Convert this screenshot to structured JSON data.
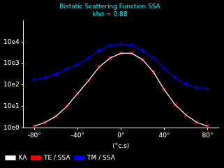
{
  "chart_data": {
    "type": "line",
    "title": "Bistatic Scattering Function SSA\nkhσ = 0.88",
    "x_label": "(°c.s)",
    "log": "y",
    "grid": false,
    "legend": "lower left",
    "xlim": [
      -90,
      90
    ],
    "xticks": [
      {
        "value": -80,
        "label": "-80°"
      },
      {
        "value": -40,
        "label": "-40°"
      },
      {
        "value": 0,
        "label": "0°"
      },
      {
        "value": 40,
        "label": "40°"
      },
      {
        "value": 80,
        "label": "80°"
      }
    ],
    "ylim": [
      1.0,
      100000.0
    ],
    "yticks": [
      {
        "value": 1,
        "label": "10e0"
      },
      {
        "value": 10,
        "label": "10e1"
      },
      {
        "value": 100,
        "label": "10e2"
      },
      {
        "value": 1000,
        "label": "10e3"
      },
      {
        "value": 10000,
        "label": "10e4"
      }
    ],
    "x": [
      -80,
      -70,
      -60,
      -50,
      -40,
      -30,
      -20,
      -10,
      0,
      10,
      20,
      30,
      40,
      50,
      60,
      70,
      80
    ],
    "series": [
      {
        "name": "KA",
        "color": "#ffffff",
        "marker": "none",
        "values": [
          1.2,
          1.8,
          3.5,
          10,
          40,
          160,
          700,
          1800,
          3000,
          3000,
          1500,
          400,
          60,
          12,
          4,
          1.8,
          1.2
        ]
      },
      {
        "name": "TE / SSA",
        "color": "#ff0000",
        "marker": "x",
        "values": [
          1.2,
          1.8,
          3.5,
          10,
          40,
          160,
          700,
          1800,
          3000,
          3000,
          1500,
          400,
          60,
          12,
          4,
          1.8,
          1.2
        ]
      },
      {
        "name": "TM / SSA",
        "color": "#0000ff",
        "marker": "+",
        "values": [
          180,
          220,
          320,
          550,
          900,
          1800,
          4000,
          7000,
          8000,
          7000,
          4000,
          1800,
          600,
          220,
          110,
          75,
          65
        ]
      }
    ]
  }
}
